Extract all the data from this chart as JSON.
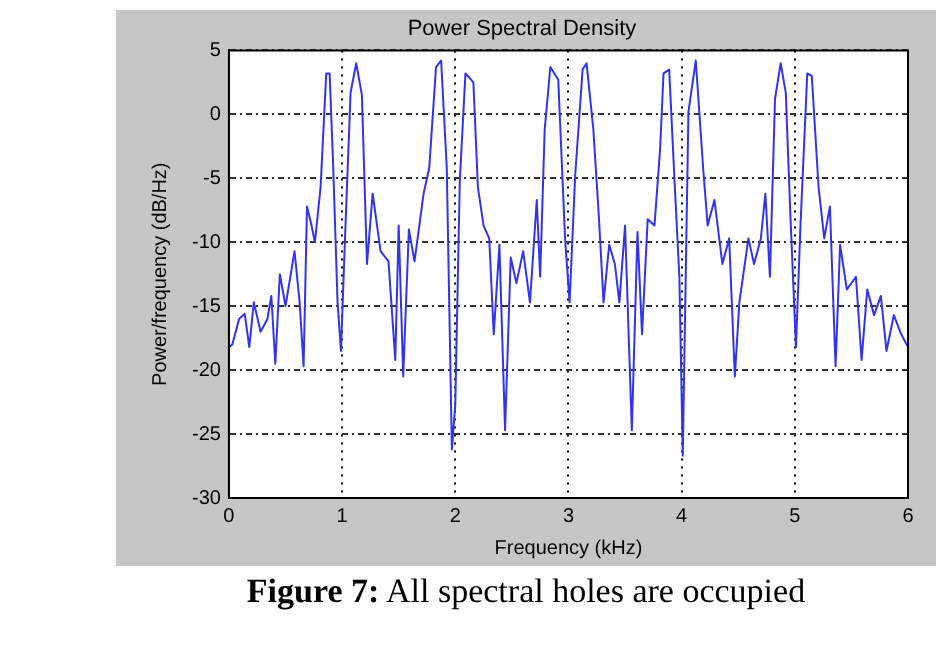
{
  "chart_data": {
    "type": "line",
    "title": "Power Spectral Density",
    "xlabel": "Frequency (kHz)",
    "ylabel": "Power/frequency (dB/Hz)",
    "x": [
      0,
      0.03,
      0.09,
      0.14,
      0.18,
      0.22,
      0.28,
      0.34,
      0.375,
      0.41,
      0.45,
      0.5,
      0.58,
      0.625,
      0.66,
      0.69,
      0.73,
      0.76,
      0.81,
      0.86,
      0.89,
      0.92,
      0.96,
      0.99,
      1.03,
      1.075,
      1.125,
      1.175,
      1.22,
      1.27,
      1.34,
      1.41,
      1.47,
      1.5,
      1.54,
      1.59,
      1.64,
      1.72,
      1.77,
      1.83,
      1.875,
      1.925,
      1.97,
      2.0,
      2.04,
      2.09,
      2.16,
      2.2,
      2.25,
      2.3,
      2.34,
      2.39,
      2.44,
      2.49,
      2.54,
      2.6,
      2.66,
      2.72,
      2.75,
      2.79,
      2.84,
      2.91,
      2.97,
      3.01,
      3.06,
      3.125,
      3.16,
      3.22,
      3.27,
      3.31,
      3.36,
      3.41,
      3.45,
      3.5,
      3.56,
      3.61,
      3.65,
      3.7,
      3.76,
      3.81,
      3.84,
      3.89,
      3.94,
      3.98,
      4.01,
      4.06,
      4.125,
      4.19,
      4.23,
      4.29,
      4.36,
      4.42,
      4.47,
      4.51,
      4.59,
      4.64,
      4.7,
      4.74,
      4.78,
      4.825,
      4.875,
      4.92,
      4.96,
      5.01,
      5.05,
      5.11,
      5.15,
      5.21,
      5.26,
      5.31,
      5.36,
      5.4,
      5.46,
      5.54,
      5.59,
      5.64,
      5.7,
      5.76,
      5.81,
      5.875,
      5.94,
      6.0
    ],
    "series": [
      {
        "color": "#3333ee",
        "values": [
          -18.2,
          -18,
          -16,
          -15.6,
          -18.2,
          -14.7,
          -17,
          -16,
          -14.2,
          -19.5,
          -12.5,
          -15,
          -10.7,
          -14.7,
          -19.7,
          -7.2,
          -8.7,
          -10,
          -5.7,
          3.2,
          3.2,
          -3.7,
          -14.7,
          -18.5,
          -8.7,
          1.7,
          4,
          1.5,
          -11.7,
          -6.2,
          -10.7,
          -11.5,
          -19.2,
          -8.7,
          -20.5,
          -9,
          -11.5,
          -6.2,
          -4.2,
          3.7,
          4.2,
          -4.2,
          -26.2,
          -22.7,
          -5.2,
          3.2,
          2.5,
          -5.7,
          -8.7,
          -9.7,
          -17.2,
          -10.2,
          -24.7,
          -11.2,
          -13.2,
          -10.7,
          -14.7,
          -6.7,
          -12.7,
          -1.2,
          3.7,
          2.7,
          -9.7,
          -14.7,
          -4.7,
          3.5,
          4,
          -1.2,
          -8.2,
          -14.7,
          -10.2,
          -11.7,
          -14.7,
          -8.7,
          -24.7,
          -9.2,
          -17.2,
          -8.2,
          -8.7,
          -2.7,
          3.2,
          3.5,
          -5.7,
          -12.7,
          -26.7,
          0.2,
          4.2,
          -4.2,
          -8.7,
          -6.7,
          -11.7,
          -9.7,
          -20.5,
          -14.7,
          -9.7,
          -11.7,
          -9.7,
          -6.2,
          -12.7,
          1.2,
          4,
          1.7,
          -7.7,
          -18.2,
          -8.7,
          3.2,
          3,
          -5.7,
          -9.7,
          -7.2,
          -19.7,
          -10.2,
          -13.7,
          -12.7,
          -19.2,
          -13.7,
          -15.7,
          -14.2,
          -18.5,
          -15.7,
          -17.2,
          -18.2
        ]
      }
    ],
    "xlim": [
      0,
      6
    ],
    "xticks": [
      0,
      1,
      2,
      3,
      4,
      5,
      6
    ],
    "ylim": [
      -30,
      5
    ],
    "yticks": [
      -30,
      -25,
      -20,
      -15,
      -10,
      -5,
      0,
      5
    ],
    "grid": true,
    "marker": "none",
    "line_style": "solid",
    "legend": false,
    "annotations": [
      "Figure 7: All spectral holes are occupied"
    ]
  }
}
